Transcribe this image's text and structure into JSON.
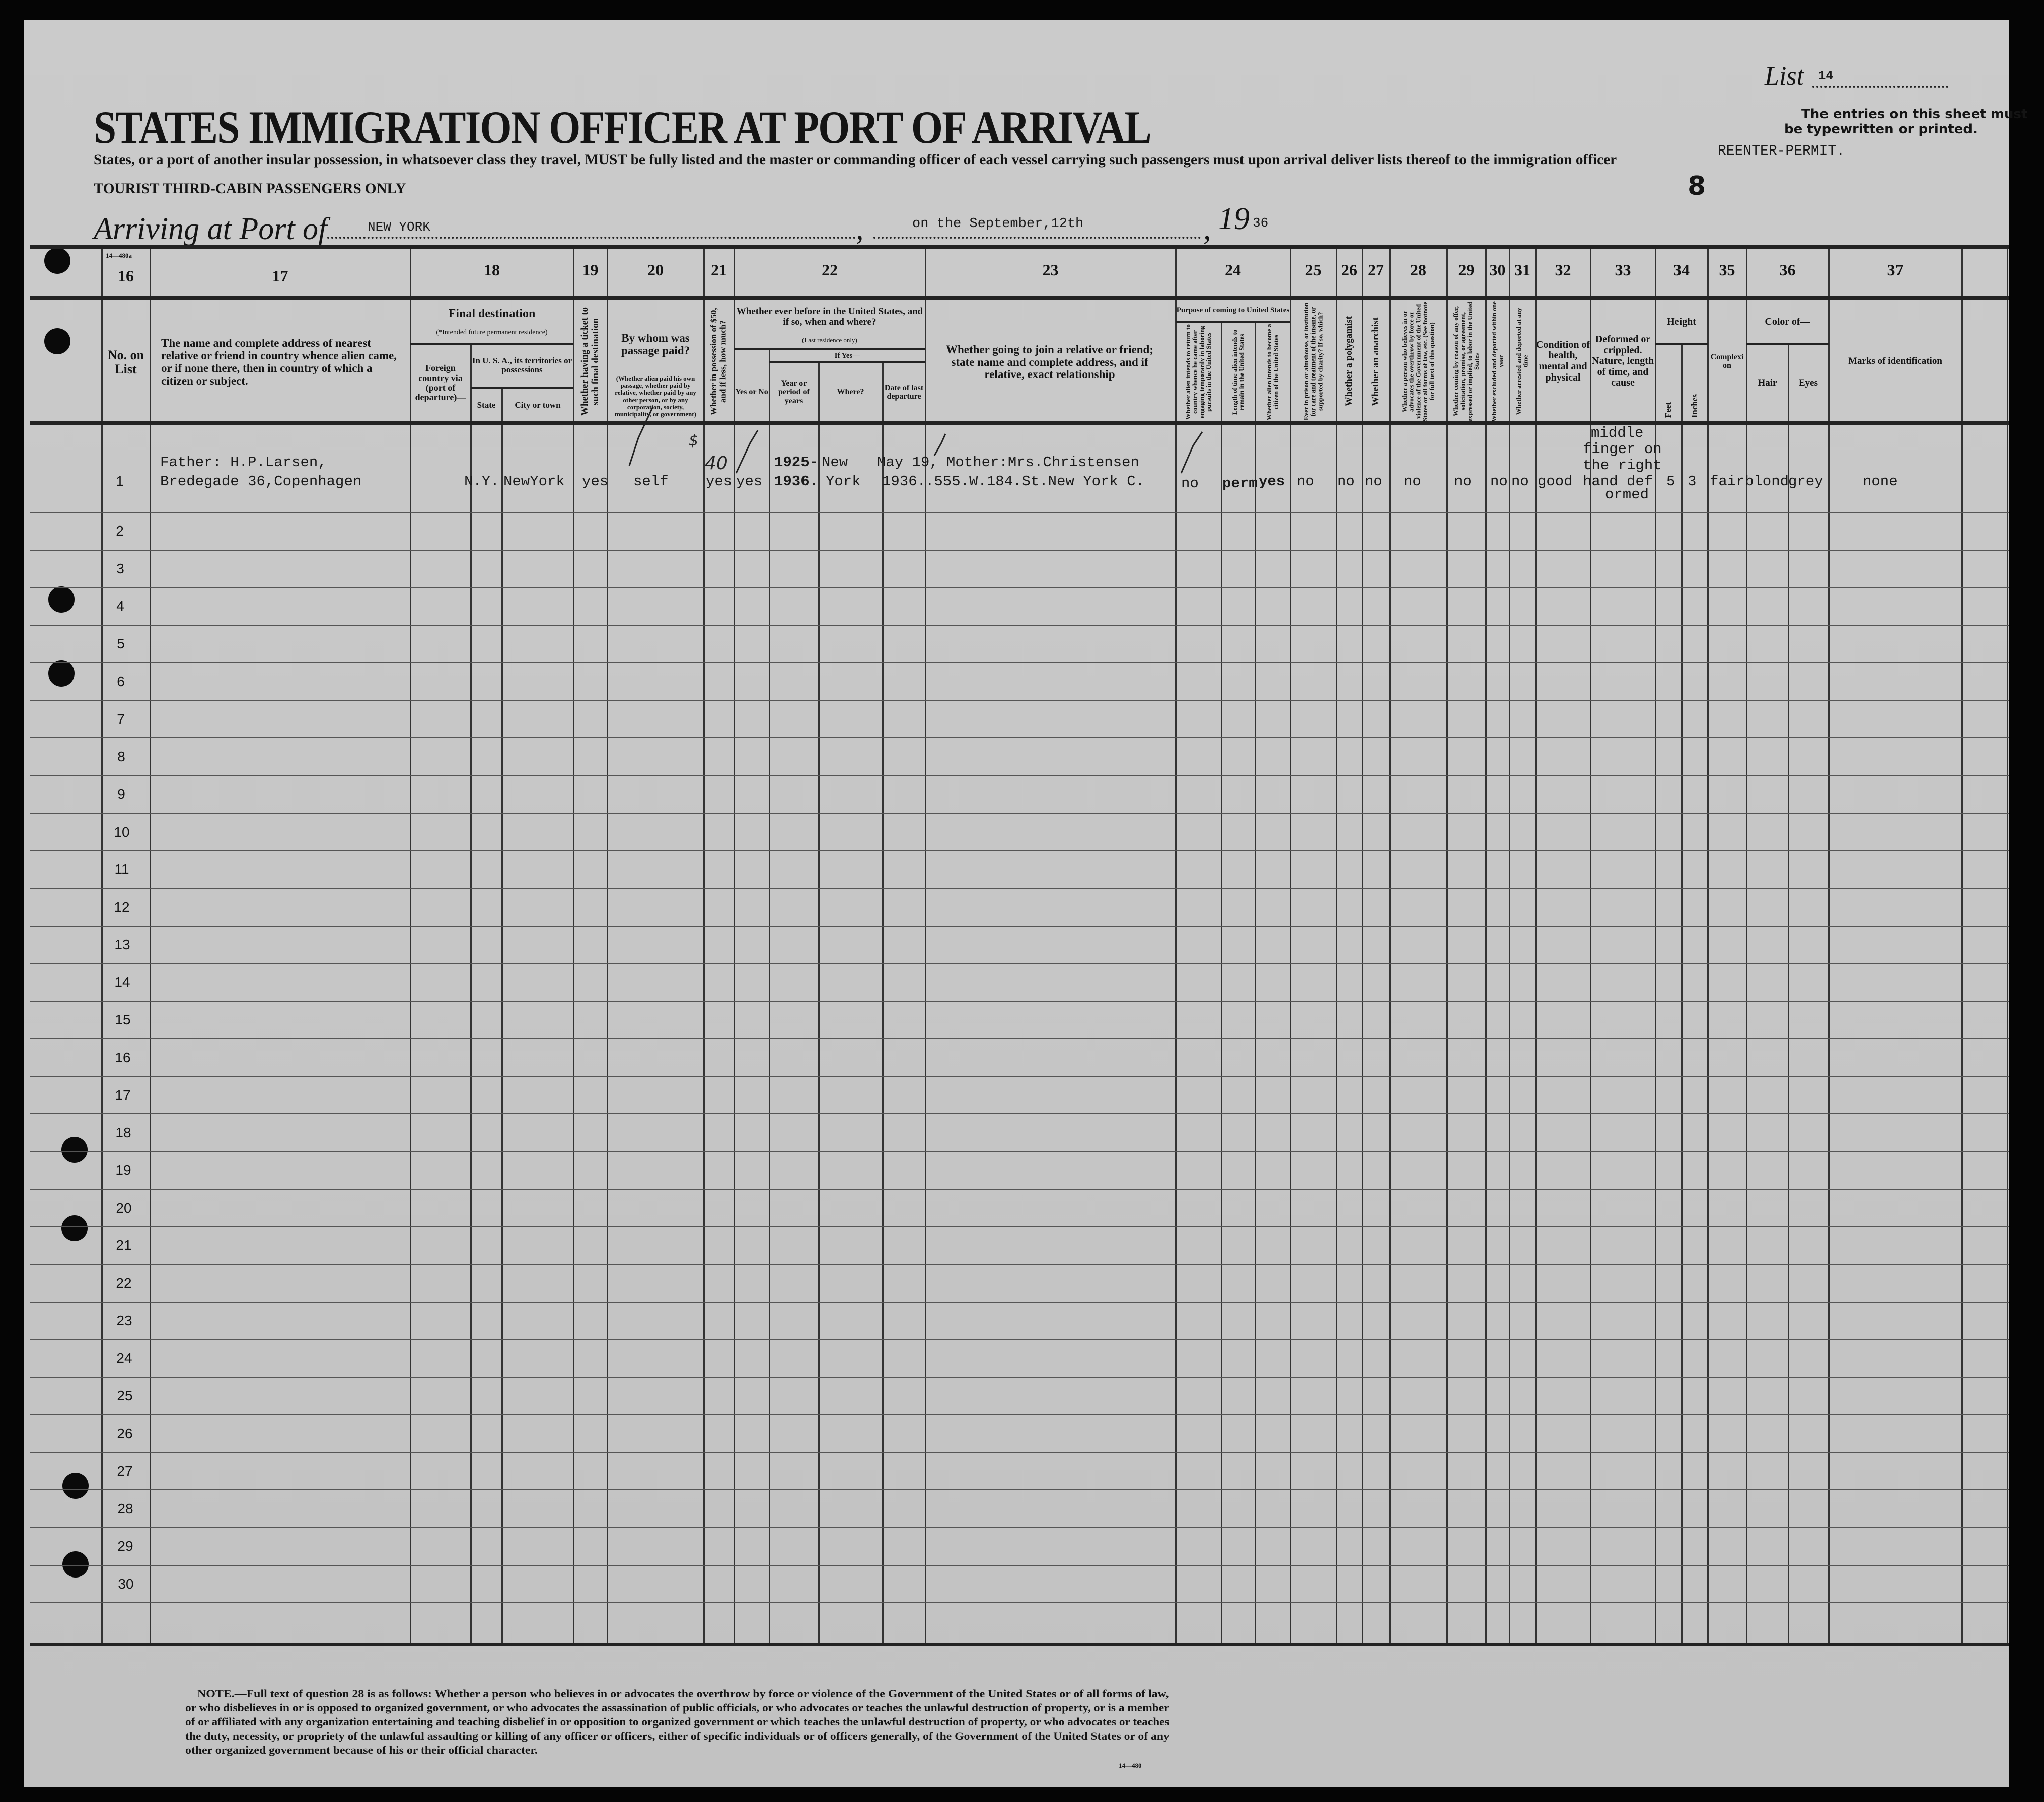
{
  "form": {
    "title": "STATES IMMIGRATION OFFICER AT PORT OF ARRIVAL",
    "instruction": "States, or a port of another insular possession, in whatsoever class they travel, MUST be fully listed and the master or commanding officer of each vessel carrying such passengers must upon arrival deliver lists thereof to the immigration officer",
    "class_line": "TOURIST THIRD-CABIN PASSENGERS ONLY",
    "arriving_label": "Arriving at Port of",
    "port": "NEW YORK",
    "date": "on the September,12th",
    "year_prefix": "19",
    "year_suffix": "36",
    "list_label": "List",
    "list_number": "14",
    "typewritten_notice_1": "The entries on this sheet must",
    "typewritten_notice_2": "be typewritten or printed.",
    "status_stamp": "REENTER-PERMIT.",
    "sheet_number": "8",
    "form_code_top": "14—480a",
    "form_code_bottom": "14—480"
  },
  "header": {
    "col_numbers": [
      "16",
      "17",
      "18",
      "19",
      "20",
      "21",
      "22",
      "23",
      "24",
      "25",
      "26",
      "27",
      "28",
      "29",
      "30",
      "31",
      "32",
      "33",
      "34",
      "35",
      "36",
      "37"
    ],
    "c16": "No. on List",
    "c17": "The name and complete address of nearest relative or friend in country whence alien came, or if none there, then in country of which a citizen or subject.",
    "c18_title": "Final destination",
    "c18_note": "(*Intended future permanent residence)",
    "c18_foreign": "Foreign country via (port of departure)—",
    "c18_usa": "In U. S. A., its territories or possessions",
    "c18_state": "State",
    "c18_city": "City or town",
    "c19": "Whether having a ticket to such final destination",
    "c20_title": "By whom was passage paid?",
    "c20_note": "(Whether alien paid his own passage, whether paid by relative, whether paid by any other person, or by any corporation, society, municipality, or government)",
    "c21": "Whether in possession of $50, and if less, how much?",
    "c22_title": "Whether ever before in the United States, and if so, when and where?",
    "c22_note": "(Last residence only)",
    "c22_ifyes": "If Yes—",
    "c22_yesno": "Yes or No",
    "c22_year": "Year or period of years",
    "c22_where": "Where?",
    "c22_date": "Date of last departure",
    "c23": "Whether going to join a relative or friend; state name and complete address, and if relative, exact relationship",
    "c24_title": "Purpose of coming to United States",
    "c24_a": "Whether alien intends to return to country whence he came after engaging temporarily in laboring pursuits in the United States",
    "c24_b": "Length of time alien intends to remain in the United States",
    "c24_c": "Whether alien intends to become a citizen of the United States",
    "c25": "Ever in prison or almshouse, or institution for care and treatment of the insane, or supported by charity? If so, which?",
    "c26": "Whether a polygamist",
    "c27": "Whether an anarchist",
    "c28": "Whether a person who believes in or advocates the overthrow by force or violence of the Government of the United States or all forms of law, etc. (See footnote for full text of this question)",
    "c29": "Whether coming by reason of any offer, solicitation, promise, or agreement, expressed or implied, to labor in the United States",
    "c30": "Whether excluded and deported within one year",
    "c31": "Whether arrested and deported at any time",
    "c32": "Condition of health, mental and physical",
    "c33": "Deformed or crippled. Nature, length of time, and cause",
    "c34_title": "Height",
    "c34_feet": "Feet",
    "c34_inches": "Inches",
    "c35": "Complexion",
    "c36_title": "Color of—",
    "c36_hair": "Hair",
    "c36_eyes": "Eyes",
    "c37": "Marks of identification"
  },
  "entry": {
    "relative_line1": "Father: H.P.Larsen,",
    "relative_line2": "Bredegade 36,Copenhagen",
    "state": "N.Y.",
    "city": "NewYork",
    "ticket": "yes",
    "passage_paid_by": "self",
    "money_handwritten": "40",
    "money_mark": "$",
    "money": "yes",
    "ever_before": "yes",
    "years_line1": "1925-",
    "years_line2": "1936.",
    "where_line1": "New",
    "where_line2": "York",
    "last_departure_line1": "May 19,",
    "last_departure_line2": "1936.",
    "joining_line1": "Mother:Mrs.Christensen",
    "joining_line2": ".555.W.184.St.New York C.",
    "return_after_labor": "no",
    "length_of_stay": "perm",
    "become_citizen": "yes",
    "prison_almshouse": "no",
    "polygamist": "no",
    "anarchist": "no",
    "q28": "no",
    "labor_offer": "no",
    "excluded": "no",
    "arrested": "no",
    "health": "good",
    "deformed_lines": [
      "middle",
      "finger on",
      "the right",
      "hand def",
      "ormed"
    ],
    "height_feet": "5",
    "height_inches": "3",
    "complexion": "fair",
    "hair": "blond",
    "eyes": "grey",
    "marks": "none"
  },
  "rows": [
    "1",
    "2",
    "3",
    "4",
    "5",
    "6",
    "7",
    "8",
    "9",
    "10",
    "11",
    "12",
    "13",
    "14",
    "15",
    "16",
    "17",
    "18",
    "19",
    "20",
    "21",
    "22",
    "23",
    "24",
    "25",
    "26",
    "27",
    "28",
    "29",
    "30"
  ],
  "footnote": [
    "NOTE.—Full text of question 28 is as follows: Whether a person who believes in or advocates the overthrow by force or violence of the Government of the United States or of all forms of law,",
    "or who disbelieves in or is opposed to organized government, or who advocates the assassination of public officials, or who advocates or teaches the unlawful destruction of property, or is a member",
    "of or affiliated with any organization entertaining and teaching disbelief in or opposition to organized government or which teaches the unlawful destruction of property, or who advocates or teaches",
    "the duty, necessity, or propriety of the unlawful assaulting or killing of any officer or officers, either of specific individuals or of officers generally, of the Government of the United States or of any",
    "other organized government because of his or their official character."
  ],
  "colors": {
    "paper": "#c8c8c8",
    "ink": "#141414",
    "border": "#050505"
  }
}
